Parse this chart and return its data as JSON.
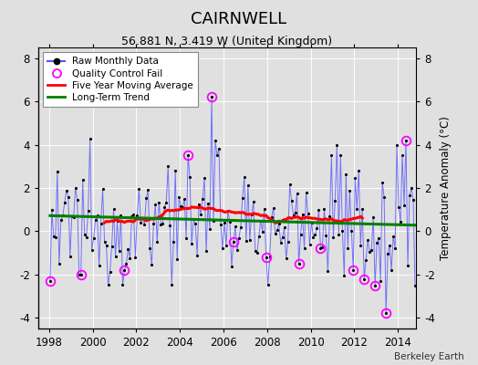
{
  "title": "CAIRNWELL",
  "subtitle": "56.881 N, 3.419 W (United Kingdom)",
  "ylabel": "Temperature Anomaly (°C)",
  "footer": "Berkeley Earth",
  "xlim": [
    1997.5,
    2014.83
  ],
  "ylim": [
    -4.5,
    8.5
  ],
  "yticks": [
    -4,
    -2,
    0,
    2,
    4,
    6,
    8
  ],
  "xticks": [
    1998,
    2000,
    2002,
    2004,
    2006,
    2008,
    2010,
    2012,
    2014
  ],
  "background_color": "#e0e0e0",
  "plot_bg_color": "#e0e0e0",
  "line_color": "#5555ff",
  "ma_color": "red",
  "trend_color": "green",
  "qc_color": "magenta",
  "seed": 12345
}
